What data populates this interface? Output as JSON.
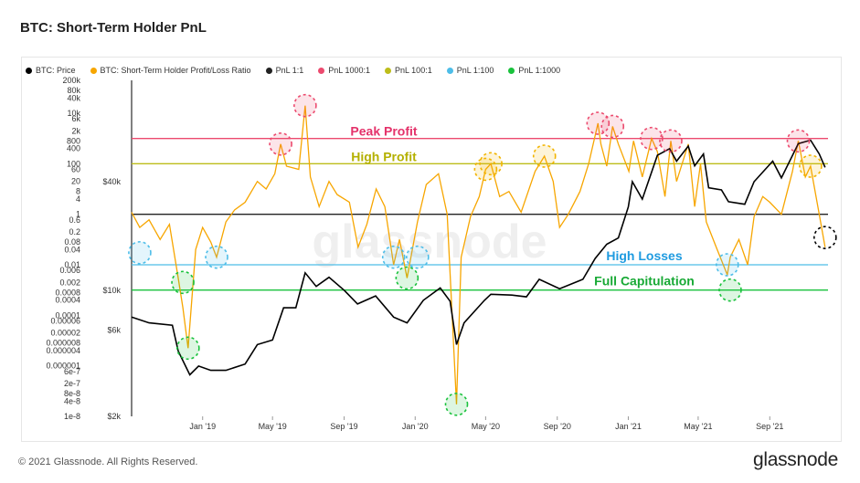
{
  "header": {
    "title": "BTC: Short-Term Holder PnL"
  },
  "footer": {
    "copyright": "© 2021 Glassnode. All Rights Reserved.",
    "logo": "glassnode"
  },
  "watermark": "glassnode",
  "colors": {
    "price": "#000000",
    "ratio": "#f7a600",
    "pnl_1_1": "#222222",
    "pnl_1000_1": "#ec4a6e",
    "pnl_100_1": "#bdbd1a",
    "pnl_1_100": "#4dbde8",
    "pnl_1_1000": "#19c23c"
  },
  "legend": [
    {
      "label": "BTC: Price",
      "color": "#000000"
    },
    {
      "label": "BTC: Short-Term Holder Profit/Loss Ratio",
      "color": "#f7a600"
    },
    {
      "label": "PnL 1:1",
      "color": "#222222"
    },
    {
      "label": "PnL 1000:1",
      "color": "#ec4a6e"
    },
    {
      "label": "PnL 100:1",
      "color": "#bdbd1a"
    },
    {
      "label": "PnL 1:100",
      "color": "#4dbde8"
    },
    {
      "label": "PnL 1:1000",
      "color": "#19c23c"
    }
  ],
  "chart_data": {
    "type": "line",
    "title": "BTC: Short-Term Holder PnL",
    "x_ticks": [
      "Jan '19",
      "May '19",
      "Sep '19",
      "Jan '20",
      "May '20",
      "Sep '20",
      "Jan '21",
      "May '21",
      "Sep '21"
    ],
    "x_range": [
      "2018-09-01",
      "2021-12-10"
    ],
    "y_left": {
      "scale": "log",
      "range": [
        1e-08,
        200000
      ],
      "tick_labels": [
        "200k",
        "80k",
        "40k",
        "10k",
        "6k",
        "2k",
        "800",
        "400",
        "100",
        "60",
        "20",
        "8",
        "4",
        "1",
        "0.6",
        "0.2",
        "0.08",
        "0.04",
        "0.01",
        "0.006",
        "0.002",
        "0.0008",
        "0.0004",
        "0.0001",
        "0.00006",
        "0.00002",
        "0.000008",
        "0.000004",
        "0.000001",
        "6e-7",
        "2e-7",
        "8e-8",
        "4e-8",
        "1e-8"
      ],
      "tick_values": [
        200000,
        80000,
        40000,
        10000,
        6000,
        2000,
        800,
        400,
        100,
        60,
        20,
        8,
        4,
        1,
        0.6,
        0.2,
        0.08,
        0.04,
        0.01,
        0.006,
        0.002,
        0.0008,
        0.0004,
        0.0001,
        6e-05,
        2e-05,
        8e-06,
        4e-06,
        1e-06,
        6e-07,
        2e-07,
        8e-08,
        4e-08,
        1e-08
      ]
    },
    "y_right_price": {
      "scale": "log",
      "range": [
        2000,
        80000
      ],
      "tick_labels": [
        "$40k",
        "$10k",
        "$6k",
        "$2k"
      ],
      "tick_values": [
        40000,
        10000,
        6000,
        2000
      ]
    },
    "reference_lines": [
      {
        "name": "PnL 1000:1",
        "value": 1000,
        "color": "#ec4a6e",
        "label": "Peak Profit"
      },
      {
        "name": "PnL 100:1",
        "value": 100,
        "color": "#bdbd1a",
        "label": "High Profit"
      },
      {
        "name": "PnL 1:1",
        "value": 1,
        "color": "#222222",
        "label": ""
      },
      {
        "name": "PnL 1:100",
        "value": 0.01,
        "color": "#4dbde8",
        "label": "High Losses"
      },
      {
        "name": "PnL 1:1000",
        "value": 0.001,
        "color": "#19c23c",
        "label": "Full Capitulation"
      }
    ],
    "series": [
      {
        "name": "BTC: Price",
        "axis": "right",
        "points": [
          [
            "2018-09-01",
            7100
          ],
          [
            "2018-10-01",
            6600
          ],
          [
            "2018-11-10",
            6400
          ],
          [
            "2018-11-20",
            4600
          ],
          [
            "2018-12-10",
            3400
          ],
          [
            "2018-12-25",
            3800
          ],
          [
            "2019-01-15",
            3600
          ],
          [
            "2019-02-10",
            3600
          ],
          [
            "2019-03-15",
            3900
          ],
          [
            "2019-04-05",
            5000
          ],
          [
            "2019-05-01",
            5300
          ],
          [
            "2019-05-20",
            8000
          ],
          [
            "2019-06-10",
            8000
          ],
          [
            "2019-06-26",
            12500
          ],
          [
            "2019-07-15",
            10500
          ],
          [
            "2019-08-06",
            11800
          ],
          [
            "2019-09-01",
            10000
          ],
          [
            "2019-09-24",
            8400
          ],
          [
            "2019-10-25",
            9300
          ],
          [
            "2019-11-25",
            7100
          ],
          [
            "2019-12-18",
            6600
          ],
          [
            "2020-01-15",
            8800
          ],
          [
            "2020-02-13",
            10300
          ],
          [
            "2020-03-01",
            8700
          ],
          [
            "2020-03-12",
            5000
          ],
          [
            "2020-03-25",
            6600
          ],
          [
            "2020-04-29",
            8800
          ],
          [
            "2020-05-10",
            9500
          ],
          [
            "2020-06-15",
            9400
          ],
          [
            "2020-07-10",
            9200
          ],
          [
            "2020-08-01",
            11500
          ],
          [
            "2020-09-05",
            10200
          ],
          [
            "2020-10-15",
            11500
          ],
          [
            "2020-11-05",
            15000
          ],
          [
            "2020-11-25",
            18000
          ],
          [
            "2020-12-15",
            19500
          ],
          [
            "2021-01-01",
            29000
          ],
          [
            "2021-01-08",
            40000
          ],
          [
            "2021-01-25",
            32000
          ],
          [
            "2021-02-20",
            56000
          ],
          [
            "2021-03-13",
            61000
          ],
          [
            "2021-03-25",
            52000
          ],
          [
            "2021-04-14",
            63000
          ],
          [
            "2021-04-25",
            49000
          ],
          [
            "2021-05-10",
            57000
          ],
          [
            "2021-05-19",
            37000
          ],
          [
            "2021-06-10",
            36000
          ],
          [
            "2021-06-22",
            31000
          ],
          [
            "2021-07-20",
            30000
          ],
          [
            "2021-08-05",
            40000
          ],
          [
            "2021-09-06",
            52000
          ],
          [
            "2021-09-21",
            42000
          ],
          [
            "2021-10-20",
            65000
          ],
          [
            "2021-11-10",
            68000
          ],
          [
            "2021-11-25",
            57000
          ],
          [
            "2021-12-05",
            48000
          ]
        ]
      },
      {
        "name": "BTC: Short-Term Holder Profit/Loss Ratio",
        "axis": "left",
        "points": [
          [
            "2018-09-01",
            1.2
          ],
          [
            "2018-09-15",
            0.3
          ],
          [
            "2018-10-01",
            0.6
          ],
          [
            "2018-10-20",
            0.1
          ],
          [
            "2018-11-05",
            0.4
          ],
          [
            "2018-11-20",
            0.003
          ],
          [
            "2018-11-28",
            0.0002
          ],
          [
            "2018-12-07",
            5e-06
          ],
          [
            "2018-12-20",
            0.04
          ],
          [
            "2019-01-01",
            0.3
          ],
          [
            "2019-01-15",
            0.08
          ],
          [
            "2019-01-25",
            0.02
          ],
          [
            "2019-02-10",
            0.5
          ],
          [
            "2019-02-25",
            1.5
          ],
          [
            "2019-03-15",
            3
          ],
          [
            "2019-04-05",
            20
          ],
          [
            "2019-04-20",
            10
          ],
          [
            "2019-05-05",
            40
          ],
          [
            "2019-05-15",
            600
          ],
          [
            "2019-05-25",
            80
          ],
          [
            "2019-06-15",
            60
          ],
          [
            "2019-06-26",
            20000
          ],
          [
            "2019-07-05",
            30
          ],
          [
            "2019-07-20",
            2
          ],
          [
            "2019-08-06",
            20
          ],
          [
            "2019-08-20",
            6
          ],
          [
            "2019-09-10",
            3
          ],
          [
            "2019-09-25",
            0.05
          ],
          [
            "2019-10-10",
            0.4
          ],
          [
            "2019-10-26",
            10
          ],
          [
            "2019-11-10",
            2
          ],
          [
            "2019-11-25",
            0.01
          ],
          [
            "2019-12-05",
            0.1
          ],
          [
            "2019-12-18",
            0.003
          ],
          [
            "2020-01-05",
            0.5
          ],
          [
            "2020-01-20",
            15
          ],
          [
            "2020-02-10",
            40
          ],
          [
            "2020-02-25",
            1
          ],
          [
            "2020-03-12",
            3e-08
          ],
          [
            "2020-03-20",
            0.02
          ],
          [
            "2020-04-05",
            0.8
          ],
          [
            "2020-04-20",
            5
          ],
          [
            "2020-05-01",
            60
          ],
          [
            "2020-05-10",
            100
          ],
          [
            "2020-05-25",
            5
          ],
          [
            "2020-06-10",
            8
          ],
          [
            "2020-07-01",
            1.2
          ],
          [
            "2020-07-25",
            50
          ],
          [
            "2020-08-10",
            200
          ],
          [
            "2020-08-25",
            20
          ],
          [
            "2020-09-05",
            0.3
          ],
          [
            "2020-09-20",
            1
          ],
          [
            "2020-10-10",
            8
          ],
          [
            "2020-10-25",
            100
          ],
          [
            "2020-11-10",
            4000
          ],
          [
            "2020-11-15",
            600
          ],
          [
            "2020-11-25",
            80
          ],
          [
            "2020-12-05",
            3000
          ],
          [
            "2020-12-15",
            600
          ],
          [
            "2021-01-02",
            50
          ],
          [
            "2021-01-10",
            800
          ],
          [
            "2021-01-25",
            30
          ],
          [
            "2021-02-10",
            1000
          ],
          [
            "2021-02-20",
            300
          ],
          [
            "2021-03-05",
            5
          ],
          [
            "2021-03-15",
            800
          ],
          [
            "2021-03-25",
            20
          ],
          [
            "2021-04-14",
            600
          ],
          [
            "2021-04-25",
            2
          ],
          [
            "2021-05-05",
            100
          ],
          [
            "2021-05-15",
            0.5
          ],
          [
            "2021-06-01",
            0.05
          ],
          [
            "2021-06-20",
            0.004
          ],
          [
            "2021-06-25",
            0.02
          ],
          [
            "2021-07-10",
            0.1
          ],
          [
            "2021-07-25",
            0.01
          ],
          [
            "2021-08-05",
            0.8
          ],
          [
            "2021-08-20",
            5
          ],
          [
            "2021-09-01",
            3
          ],
          [
            "2021-09-21",
            1
          ],
          [
            "2021-10-10",
            50
          ],
          [
            "2021-10-20",
            800
          ],
          [
            "2021-11-01",
            30
          ],
          [
            "2021-11-10",
            80
          ],
          [
            "2021-11-25",
            1
          ],
          [
            "2021-12-05",
            0.05
          ]
        ]
      }
    ],
    "annotations": [
      "Peak Profit",
      "High Profit",
      "High Losses",
      "Full Capitulation"
    ]
  }
}
